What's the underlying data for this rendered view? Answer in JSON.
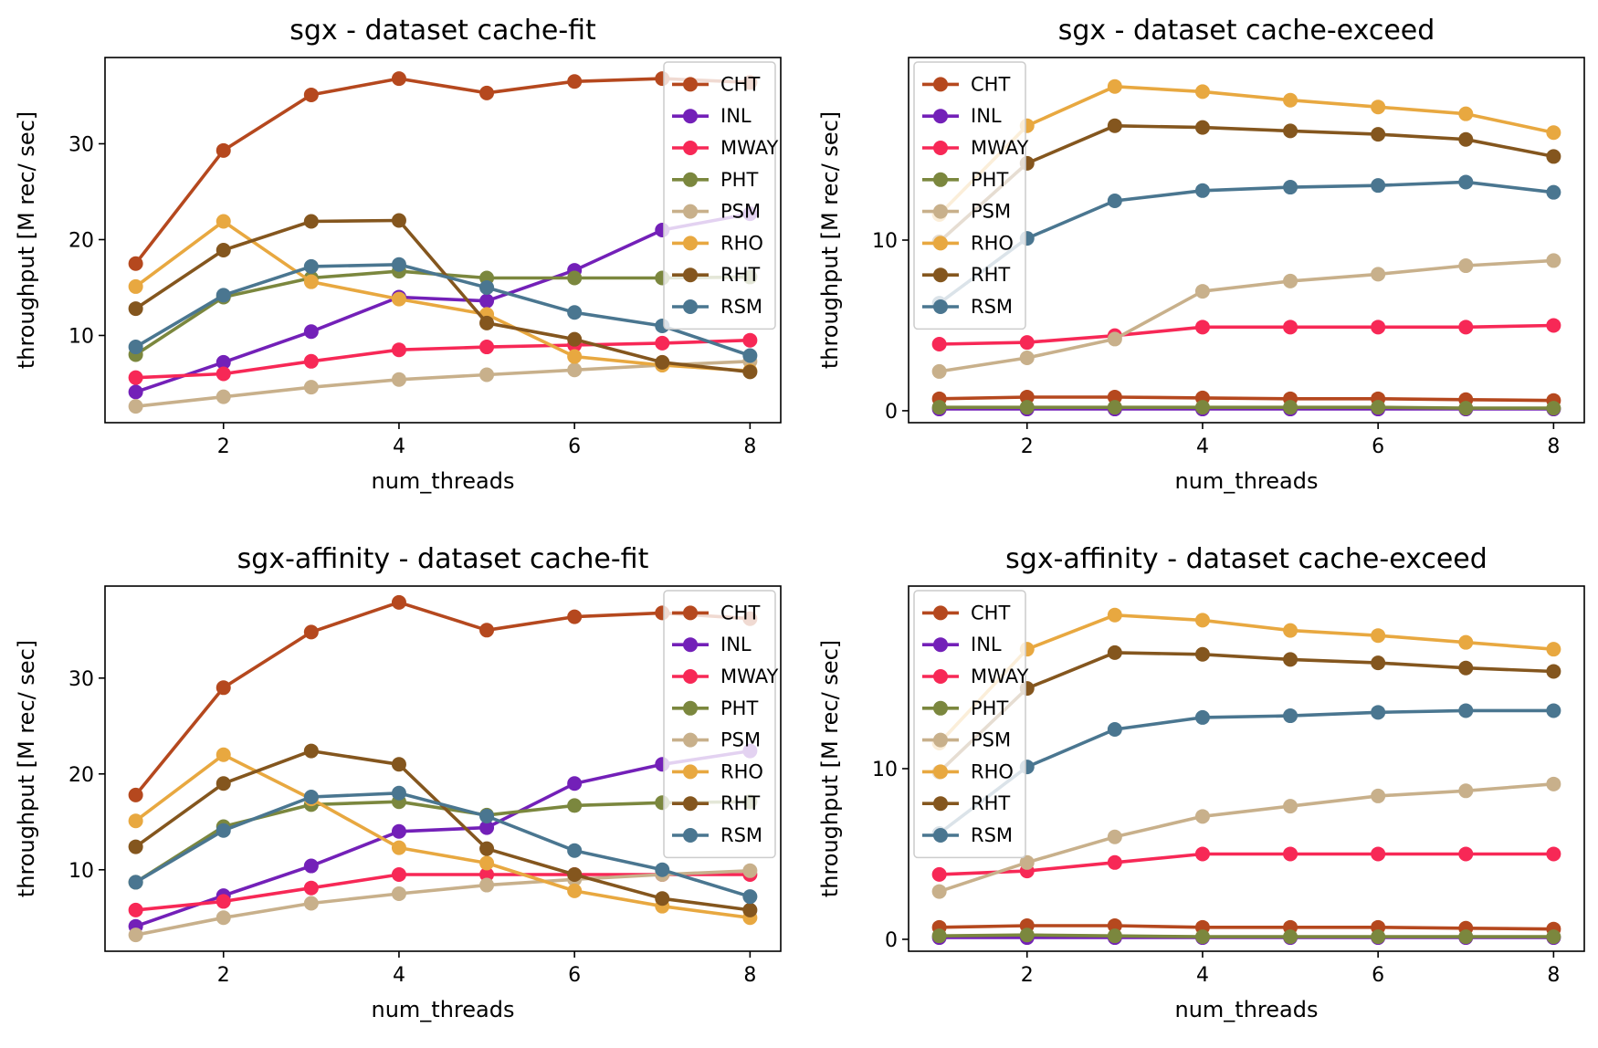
{
  "colors": {
    "CHT": "#b5481e",
    "INL": "#7320b8",
    "MWAY": "#f72856",
    "PHT": "#7b873e",
    "PSM": "#c8b08b",
    "RHO": "#e8a840",
    "RHT": "#84561e",
    "RSM": "#4a7690"
  },
  "chart_data": [
    {
      "type": "line",
      "title": "sgx - dataset cache-fit",
      "xlabel": "num_threads",
      "ylabel": "throughput [M rec/ sec]",
      "x": [
        1,
        2,
        3,
        4,
        5,
        6,
        7,
        8
      ],
      "xlim": [
        0.65,
        8.35
      ],
      "ylim": [
        0.9,
        39.0
      ],
      "xticks": [
        2,
        4,
        6,
        8
      ],
      "yticks": [
        10,
        20,
        30
      ],
      "legend_position": "upper right",
      "series": [
        {
          "name": "CHT",
          "values": [
            17.5,
            29.3,
            35.1,
            36.8,
            35.3,
            36.5,
            36.8,
            36.4
          ]
        },
        {
          "name": "INL",
          "values": [
            4.1,
            7.2,
            10.4,
            14.0,
            13.6,
            16.8,
            21.0,
            22.7
          ]
        },
        {
          "name": "MWAY",
          "values": [
            5.6,
            6.0,
            7.3,
            8.5,
            8.8,
            9.0,
            9.2,
            9.5
          ]
        },
        {
          "name": "PHT",
          "values": [
            8.0,
            14.0,
            16.0,
            16.7,
            16.0,
            16.0,
            16.0,
            16.1
          ]
        },
        {
          "name": "PSM",
          "values": [
            2.6,
            3.6,
            4.6,
            5.4,
            5.9,
            6.4,
            6.9,
            7.3
          ]
        },
        {
          "name": "RHO",
          "values": [
            15.1,
            21.9,
            15.6,
            13.8,
            12.2,
            7.8,
            6.9,
            6.3
          ]
        },
        {
          "name": "RHT",
          "values": [
            12.8,
            18.9,
            21.9,
            22.0,
            11.3,
            9.6,
            7.2,
            6.2
          ]
        },
        {
          "name": "RSM",
          "values": [
            8.8,
            14.2,
            17.2,
            17.4,
            15.0,
            12.4,
            11.0,
            7.9
          ]
        }
      ]
    },
    {
      "type": "line",
      "title": "sgx - dataset cache-exceed",
      "xlabel": "num_threads",
      "ylabel": "throughput [M rec/ sec]",
      "x": [
        1,
        2,
        3,
        4,
        5,
        6,
        7,
        8
      ],
      "xlim": [
        0.65,
        8.35
      ],
      "ylim": [
        -0.7,
        20.7
      ],
      "xticks": [
        2,
        4,
        6,
        8
      ],
      "yticks": [
        0,
        10
      ],
      "legend_position": "upper left",
      "series": [
        {
          "name": "CHT",
          "values": [
            0.7,
            0.8,
            0.8,
            0.75,
            0.7,
            0.7,
            0.65,
            0.6
          ]
        },
        {
          "name": "INL",
          "values": [
            0.1,
            0.1,
            0.1,
            0.1,
            0.1,
            0.1,
            0.1,
            0.1
          ]
        },
        {
          "name": "MWAY",
          "values": [
            3.9,
            4.0,
            4.4,
            4.9,
            4.9,
            4.9,
            4.9,
            5.0
          ]
        },
        {
          "name": "PHT",
          "values": [
            0.2,
            0.2,
            0.2,
            0.2,
            0.2,
            0.2,
            0.15,
            0.15
          ]
        },
        {
          "name": "PSM",
          "values": [
            2.3,
            3.1,
            4.2,
            7.0,
            7.6,
            8.0,
            8.5,
            8.8
          ]
        },
        {
          "name": "RHO",
          "values": [
            11.5,
            16.7,
            19.0,
            18.7,
            18.2,
            17.8,
            17.4,
            16.3
          ]
        },
        {
          "name": "RHT",
          "values": [
            9.9,
            14.5,
            16.7,
            16.6,
            16.4,
            16.2,
            15.9,
            14.9
          ]
        },
        {
          "name": "RSM",
          "values": [
            6.3,
            10.1,
            12.3,
            12.9,
            13.1,
            13.2,
            13.4,
            12.8
          ]
        }
      ]
    },
    {
      "type": "line",
      "title": "sgx-affinity - dataset cache-fit",
      "xlabel": "num_threads",
      "ylabel": "throughput [M rec/ sec]",
      "x": [
        1,
        2,
        3,
        4,
        5,
        6,
        7,
        8
      ],
      "xlim": [
        0.65,
        8.35
      ],
      "ylim": [
        1.5,
        39.6
      ],
      "xticks": [
        2,
        4,
        6,
        8
      ],
      "yticks": [
        10,
        20,
        30
      ],
      "legend_position": "upper right",
      "series": [
        {
          "name": "CHT",
          "values": [
            17.8,
            29.0,
            34.8,
            37.9,
            35.0,
            36.4,
            36.8,
            36.2
          ]
        },
        {
          "name": "INL",
          "values": [
            4.1,
            7.3,
            10.4,
            14.0,
            14.4,
            19.0,
            21.0,
            22.4
          ]
        },
        {
          "name": "MWAY",
          "values": [
            5.8,
            6.7,
            8.1,
            9.5,
            9.5,
            9.5,
            9.5,
            9.5
          ]
        },
        {
          "name": "PHT",
          "values": [
            8.7,
            14.5,
            16.8,
            17.1,
            15.7,
            16.7,
            17.0,
            17.1
          ]
        },
        {
          "name": "PSM",
          "values": [
            3.2,
            5.0,
            6.5,
            7.5,
            8.4,
            9.0,
            9.5,
            9.9
          ]
        },
        {
          "name": "RHO",
          "values": [
            15.1,
            22.0,
            17.4,
            12.3,
            10.7,
            7.8,
            6.2,
            5.0
          ]
        },
        {
          "name": "RHT",
          "values": [
            12.4,
            19.0,
            22.4,
            21.0,
            12.2,
            9.5,
            7.0,
            5.8
          ]
        },
        {
          "name": "RSM",
          "values": [
            8.7,
            14.1,
            17.6,
            18.0,
            15.6,
            12.0,
            10.0,
            7.2
          ]
        }
      ]
    },
    {
      "type": "line",
      "title": "sgx-affinity - dataset cache-exceed",
      "xlabel": "num_threads",
      "ylabel": "throughput [M rec/ sec]",
      "x": [
        1,
        2,
        3,
        4,
        5,
        6,
        7,
        8
      ],
      "xlim": [
        0.65,
        8.35
      ],
      "ylim": [
        -0.7,
        20.7
      ],
      "xticks": [
        2,
        4,
        6,
        8
      ],
      "yticks": [
        0,
        10
      ],
      "legend_position": "upper left",
      "series": [
        {
          "name": "CHT",
          "values": [
            0.7,
            0.8,
            0.8,
            0.7,
            0.7,
            0.7,
            0.65,
            0.6
          ]
        },
        {
          "name": "INL",
          "values": [
            0.1,
            0.1,
            0.1,
            0.1,
            0.1,
            0.1,
            0.1,
            0.1
          ]
        },
        {
          "name": "MWAY",
          "values": [
            3.8,
            4.0,
            4.5,
            5.0,
            5.0,
            5.0,
            5.0,
            5.0
          ]
        },
        {
          "name": "PHT",
          "values": [
            0.2,
            0.25,
            0.2,
            0.15,
            0.15,
            0.15,
            0.15,
            0.15
          ]
        },
        {
          "name": "PSM",
          "values": [
            2.8,
            4.5,
            6.0,
            7.2,
            7.8,
            8.4,
            8.7,
            9.1
          ]
        },
        {
          "name": "RHO",
          "values": [
            11.5,
            17.0,
            19.0,
            18.7,
            18.1,
            17.8,
            17.4,
            17.0
          ]
        },
        {
          "name": "RHT",
          "values": [
            9.8,
            14.7,
            16.8,
            16.7,
            16.4,
            16.2,
            15.9,
            15.7
          ]
        },
        {
          "name": "RSM",
          "values": [
            6.2,
            10.1,
            12.3,
            13.0,
            13.1,
            13.3,
            13.4,
            13.4
          ]
        }
      ]
    }
  ]
}
